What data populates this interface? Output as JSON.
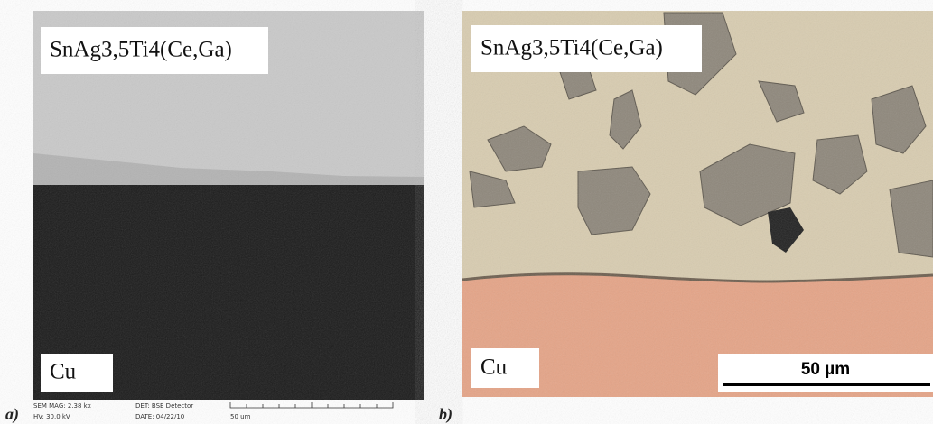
{
  "panels": [
    {
      "label": "a)",
      "alloy": "SnAg3,5Ti4(Ce,Ga)",
      "substrate": "Cu",
      "footer": {
        "mag": "SEM MAG: 2.38 kx",
        "hv": "HV: 30.0 kV",
        "det": "DET: BSE Detector",
        "date": "DATE: 04/22/10",
        "scale": "50 um"
      }
    },
    {
      "label": "b)",
      "alloy": "SnAg3,5Ti4(Ce,Ga)",
      "substrate": "Cu",
      "scale": "50 µm"
    }
  ]
}
